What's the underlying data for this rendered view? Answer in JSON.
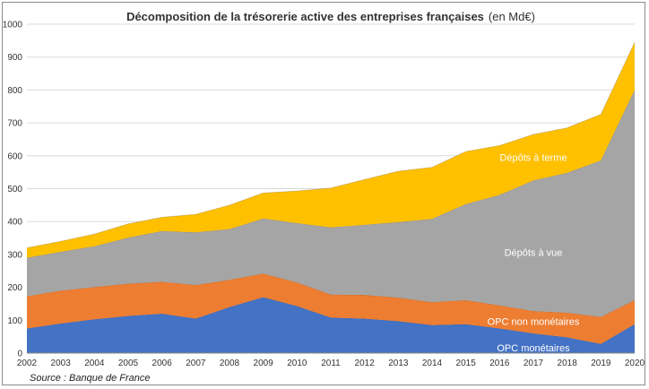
{
  "chart_data": {
    "type": "area",
    "stacked": true,
    "title": "Décomposition de la trésorerie active des entreprises françaises",
    "title_unit": "(en Md€)",
    "source": "Source : Banque de France",
    "x": [
      "2002",
      "2003",
      "2004",
      "2005",
      "2006",
      "2007",
      "2008",
      "2009",
      "2010",
      "2011",
      "2012",
      "2013",
      "2014",
      "2015",
      "2016",
      "2017",
      "2018",
      "2019",
      "2020"
    ],
    "ylim": [
      0,
      1000
    ],
    "yticks": [
      0,
      100,
      200,
      300,
      400,
      500,
      600,
      700,
      800,
      900,
      1000
    ],
    "grid": true,
    "series": [
      {
        "name": "OPC monétaires",
        "color": "#4472C4",
        "values": [
          75,
          90,
          103,
          113,
          120,
          105,
          140,
          170,
          143,
          108,
          105,
          97,
          85,
          88,
          75,
          60,
          48,
          28,
          88
        ]
      },
      {
        "name": "OPC non monétaires",
        "color": "#ED7D31",
        "values": [
          98,
          100,
          98,
          98,
          97,
          102,
          83,
          72,
          72,
          70,
          72,
          72,
          70,
          73,
          70,
          68,
          75,
          82,
          73
        ]
      },
      {
        "name": "Dépôts à vue",
        "color": "#A5A5A5",
        "values": [
          117,
          118,
          124,
          140,
          154,
          160,
          154,
          167,
          180,
          204,
          213,
          229,
          253,
          292,
          336,
          397,
          425,
          476,
          639
        ]
      },
      {
        "name": "Dépôts à terme",
        "color": "#FFC000",
        "values": [
          30,
          32,
          37,
          42,
          42,
          55,
          73,
          78,
          98,
          120,
          138,
          155,
          157,
          160,
          150,
          140,
          137,
          140,
          145
        ]
      }
    ]
  }
}
